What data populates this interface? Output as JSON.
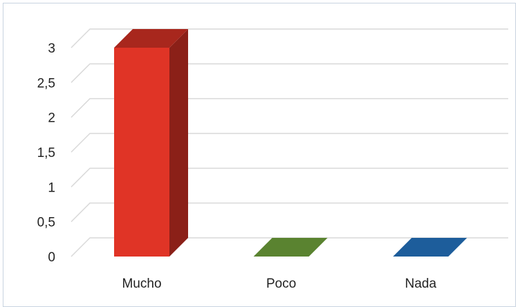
{
  "chart_data": {
    "type": "bar",
    "categories": [
      "Mucho",
      "Poco",
      "Nada"
    ],
    "values": [
      3,
      0,
      0
    ],
    "colors": [
      "#e03426",
      "#5f8a32",
      "#1f62a3"
    ],
    "ylim": [
      0,
      3
    ],
    "yticks": [
      "0",
      "0,5",
      "1",
      "1,5",
      "2",
      "2,5",
      "3"
    ],
    "grid": true,
    "three_d": true,
    "legend": "none"
  }
}
